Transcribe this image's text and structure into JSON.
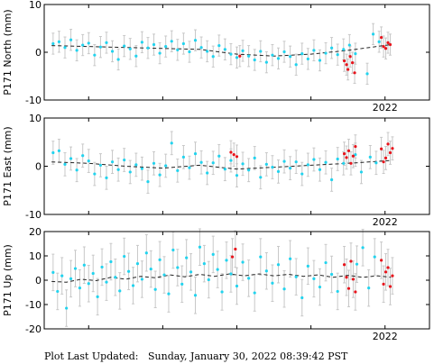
{
  "footer": {
    "label": "Plot Last Updated:",
    "timestamp": "Sunday, January 30, 2022 08:39:42 PST"
  },
  "colors": {
    "primary_points": "#22d3ee",
    "recent_points": "#e8141c",
    "error_bars": "#c8c8c8",
    "trend_line": "#222222"
  },
  "chart_data": [
    {
      "type": "scatter",
      "title": "",
      "ylabel": "P171 North (mm)",
      "xlabel": "",
      "x_tick_labels": [
        "2022"
      ],
      "y_ticks": [
        -10,
        0,
        10
      ],
      "ylim": [
        -10,
        10
      ],
      "xlim": [
        2017.4,
        2022.6
      ],
      "grid": false,
      "error_bar_mm": 2.2,
      "trend": {
        "x": [
          2017.5,
          2018.5,
          2019.5,
          2020.0,
          2020.5,
          2021.0,
          2021.5,
          2022.08
        ],
        "y": [
          1.4,
          1.0,
          0.6,
          -0.4,
          -0.8,
          -0.4,
          0.4,
          1.6
        ]
      },
      "series": [
        {
          "color_role": "primary",
          "x": [
            2017.52,
            2017.6,
            2017.68,
            2017.76,
            2017.84,
            2017.92,
            2018.0,
            2018.08,
            2018.16,
            2018.24,
            2018.32,
            2018.4,
            2018.48,
            2018.56,
            2018.64,
            2018.72,
            2018.8,
            2018.88,
            2018.96,
            2019.04,
            2019.12,
            2019.2,
            2019.28,
            2019.36,
            2019.44,
            2019.52,
            2019.6,
            2019.68,
            2019.76,
            2019.84,
            2019.92,
            2020.0,
            2020.08,
            2020.16,
            2020.24,
            2020.32,
            2020.4,
            2020.48,
            2020.56,
            2020.64,
            2020.72,
            2020.8,
            2020.88,
            2020.96,
            2021.04,
            2021.12,
            2021.2,
            2021.28,
            2021.36,
            2021.44,
            2021.52,
            2021.6,
            2021.76,
            2021.84,
            2021.92
          ],
          "y": [
            1.8,
            2.2,
            1.0,
            2.6,
            0.4,
            1.5,
            1.9,
            -0.6,
            1.1,
            2.0,
            0.2,
            -1.5,
            1.3,
            0.7,
            -0.8,
            2.1,
            0.9,
            1.6,
            -0.2,
            1.2,
            2.3,
            0.5,
            1.8,
            0.1,
            2.5,
            1.0,
            0.2,
            -0.9,
            1.4,
            0.6,
            -0.4,
            -1.1,
            0.3,
            -0.8,
            -1.6,
            0.2,
            -2.1,
            -0.6,
            -1.3,
            0.1,
            -0.9,
            -2.6,
            -0.3,
            -1.4,
            0.4,
            -1.7,
            -0.2,
            0.9,
            -0.5,
            0.6,
            1.5,
            -0.3,
            -4.5,
            3.8,
            2.2
          ]
        },
        {
          "color_role": "recent",
          "x": [
            2020.04,
            2021.45,
            2021.48,
            2021.5,
            2021.53,
            2021.56,
            2021.59,
            2021.95,
            2021.98,
            2022.01,
            2022.04,
            2022.07
          ],
          "y": [
            -0.8,
            -1.8,
            -2.6,
            -3.6,
            -0.9,
            -2.2,
            -4.3,
            3.1,
            1.2,
            0.8,
            2.0,
            1.6
          ]
        }
      ]
    },
    {
      "type": "scatter",
      "title": "",
      "ylabel": "P171 East (mm)",
      "xlabel": "",
      "x_tick_labels": [
        "2022"
      ],
      "y_ticks": [
        -10,
        0,
        10
      ],
      "ylim": [
        -10,
        10
      ],
      "xlim": [
        2017.4,
        2022.6
      ],
      "grid": false,
      "error_bar_mm": 2.4,
      "trend": {
        "x": [
          2017.5,
          2018.0,
          2018.5,
          2019.0,
          2019.5,
          2020.0,
          2020.5,
          2021.0,
          2021.5,
          2022.08
        ],
        "y": [
          0.9,
          0.6,
          0.0,
          -0.4,
          0.2,
          -0.6,
          -0.2,
          0.2,
          0.6,
          1.2
        ]
      },
      "series": [
        {
          "color_role": "primary",
          "x": [
            2017.52,
            2017.6,
            2017.68,
            2017.76,
            2017.84,
            2017.92,
            2018.0,
            2018.08,
            2018.16,
            2018.24,
            2018.32,
            2018.4,
            2018.48,
            2018.56,
            2018.64,
            2018.72,
            2018.8,
            2018.88,
            2018.96,
            2019.04,
            2019.12,
            2019.2,
            2019.28,
            2019.36,
            2019.44,
            2019.52,
            2019.6,
            2019.68,
            2019.76,
            2019.84,
            2019.92,
            2020.0,
            2020.08,
            2020.16,
            2020.24,
            2020.32,
            2020.4,
            2020.48,
            2020.56,
            2020.64,
            2020.72,
            2020.8,
            2020.88,
            2020.96,
            2021.04,
            2021.12,
            2021.2,
            2021.28,
            2021.36,
            2021.44,
            2021.6,
            2021.68,
            2021.8,
            2021.88
          ],
          "y": [
            2.8,
            3.2,
            0.4,
            1.6,
            -0.8,
            2.2,
            1.1,
            -1.6,
            0.2,
            -2.4,
            0.9,
            -0.7,
            1.3,
            -1.2,
            0.3,
            -0.5,
            -3.2,
            0.6,
            -1.8,
            0.1,
            4.8,
            -0.9,
            1.9,
            -0.3,
            2.6,
            0.8,
            -1.4,
            0.7,
            2.1,
            -0.6,
            1.2,
            -1.9,
            0.5,
            -0.8,
            1.7,
            -2.3,
            0.4,
            -0.2,
            -1.1,
            1.0,
            -0.4,
            0.9,
            -1.6,
            0.3,
            1.4,
            -0.7,
            0.8,
            -2.8,
            1.5,
            0.6,
            2.4,
            -1.2,
            1.9,
            0.7
          ]
        },
        {
          "color_role": "recent",
          "x": [
            2019.92,
            2019.96,
            2020.0,
            2021.45,
            2021.48,
            2021.51,
            2021.54,
            2021.57,
            2021.6,
            2021.95,
            2021.98,
            2022.01,
            2022.04,
            2022.07,
            2022.1
          ],
          "y": [
            2.9,
            2.4,
            2.0,
            2.6,
            1.8,
            3.2,
            0.6,
            2.1,
            4.1,
            3.6,
            0.9,
            1.7,
            4.6,
            2.8,
            3.7
          ]
        }
      ]
    },
    {
      "type": "scatter",
      "title": "",
      "ylabel": "P171 Up (mm)",
      "xlabel": "",
      "x_tick_labels": [
        "2022"
      ],
      "y_ticks": [
        -20,
        -10,
        0,
        10,
        20
      ],
      "ylim": [
        -20,
        20
      ],
      "xlim": [
        2017.4,
        2022.6
      ],
      "grid": false,
      "error_bar_mm": 7.5,
      "trend": {
        "x": [
          2017.5,
          2017.7,
          2017.9,
          2018.1,
          2018.3,
          2018.5,
          2018.7,
          2018.9,
          2019.1,
          2019.3,
          2019.5,
          2019.7,
          2019.9,
          2020.1,
          2020.3,
          2020.5,
          2020.7,
          2020.9,
          2021.1,
          2021.3,
          2021.5,
          2021.7,
          2021.9,
          2022.08
        ],
        "y": [
          -0.5,
          -0.8,
          0.4,
          -0.2,
          1.2,
          0.4,
          1.6,
          1.0,
          2.2,
          1.4,
          2.4,
          1.6,
          2.6,
          1.8,
          2.6,
          1.8,
          2.4,
          1.6,
          2.2,
          1.2,
          2.0,
          1.2,
          1.8,
          1.2
        ]
      },
      "series": [
        {
          "color_role": "primary",
          "x": [
            2017.52,
            2017.58,
            2017.64,
            2017.7,
            2017.76,
            2017.82,
            2017.88,
            2017.94,
            2018.0,
            2018.06,
            2018.12,
            2018.18,
            2018.24,
            2018.3,
            2018.36,
            2018.42,
            2018.48,
            2018.54,
            2018.6,
            2018.66,
            2018.72,
            2018.78,
            2018.84,
            2018.9,
            2018.96,
            2019.02,
            2019.08,
            2019.14,
            2019.2,
            2019.26,
            2019.32,
            2019.38,
            2019.44,
            2019.5,
            2019.56,
            2019.62,
            2019.68,
            2019.74,
            2019.8,
            2019.86,
            2019.92,
            2020.0,
            2020.08,
            2020.16,
            2020.24,
            2020.32,
            2020.4,
            2020.48,
            2020.56,
            2020.64,
            2020.72,
            2020.8,
            2020.88,
            2020.96,
            2021.04,
            2021.12,
            2021.2,
            2021.28,
            2021.36,
            2021.62,
            2021.7,
            2021.78,
            2021.86
          ],
          "y": [
            3.2,
            -4.6,
            1.8,
            -11.5,
            0.6,
            4.8,
            -3.2,
            6.2,
            -1.4,
            2.8,
            -6.8,
            5.4,
            -0.8,
            7.6,
            1.2,
            -4.4,
            9.8,
            3.6,
            -2.2,
            6.8,
            0.4,
            11.2,
            4.6,
            -3.8,
            8.4,
            2.2,
            -5.6,
            12.4,
            5.2,
            -1.6,
            9.2,
            3.4,
            -6.2,
            13.6,
            6.8,
            0.2,
            10.6,
            4.4,
            -4.8,
            8.2,
            2.6,
            -2.4,
            7.4,
            0.8,
            -5.2,
            9.6,
            3.8,
            -1.2,
            6.4,
            -3.6,
            8.8,
            1.4,
            -7.2,
            5.8,
            0.6,
            -2.8,
            7.2,
            2.4,
            -4.6,
            6.6,
            13.4,
            -3.2,
            9.6
          ]
        },
        {
          "color_role": "recent",
          "x": [
            2019.94,
            2019.98,
            2021.45,
            2021.48,
            2021.51,
            2021.54,
            2021.57,
            2021.6,
            2021.95,
            2021.98,
            2022.01,
            2022.04,
            2022.07,
            2022.1
          ],
          "y": [
            9.6,
            12.8,
            6.4,
            1.2,
            -3.4,
            7.8,
            0.4,
            -4.8,
            8.2,
            -1.6,
            3.4,
            5.2,
            -2.6,
            1.8
          ]
        }
      ]
    }
  ]
}
